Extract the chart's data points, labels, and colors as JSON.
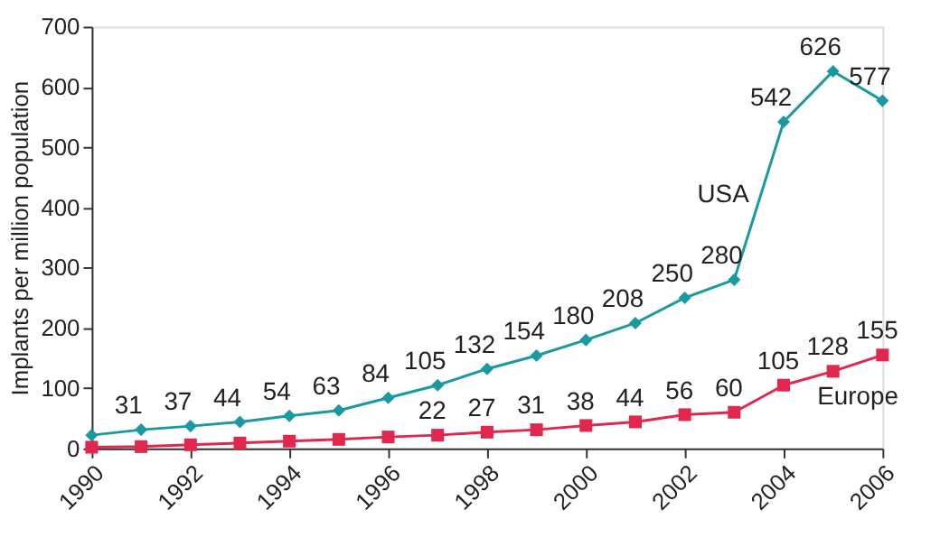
{
  "chart_data": {
    "type": "line",
    "ylabel": "Implants per million population",
    "x": [
      1990,
      1991,
      1992,
      1993,
      1994,
      1995,
      1996,
      1997,
      1998,
      1999,
      2000,
      2001,
      2002,
      2003,
      2004,
      2005,
      2006
    ],
    "series": [
      {
        "name": "USA",
        "color": "#1a9aa0",
        "marker": "diamond",
        "values": [
          22,
          31,
          37,
          44,
          54,
          63,
          84,
          105,
          132,
          154,
          180,
          208,
          250,
          280,
          542,
          626,
          577
        ],
        "value_labels": [
          null,
          "31",
          "37",
          "44",
          "54",
          "63",
          "84",
          "105",
          "132",
          "154",
          "180",
          "208",
          "250",
          "280",
          "542",
          "626",
          "577"
        ]
      },
      {
        "name": "Europe",
        "color": "#e0284f",
        "marker": "square",
        "values": [
          2,
          3,
          6,
          9,
          12,
          15,
          19,
          22,
          27,
          31,
          38,
          44,
          56,
          60,
          105,
          128,
          155
        ],
        "value_labels": [
          null,
          null,
          null,
          null,
          null,
          null,
          null,
          "22",
          "27",
          "31",
          "38",
          "44",
          "56",
          "60",
          "105",
          "128",
          "155"
        ]
      }
    ],
    "xlim": [
      1990,
      2006
    ],
    "xticks": [
      1990,
      1992,
      1994,
      1996,
      1998,
      2000,
      2002,
      2004,
      2006
    ],
    "ylim": [
      0,
      700
    ],
    "yticks": [
      0,
      100,
      200,
      300,
      400,
      500,
      600,
      700
    ],
    "grid": false,
    "legend": false
  }
}
